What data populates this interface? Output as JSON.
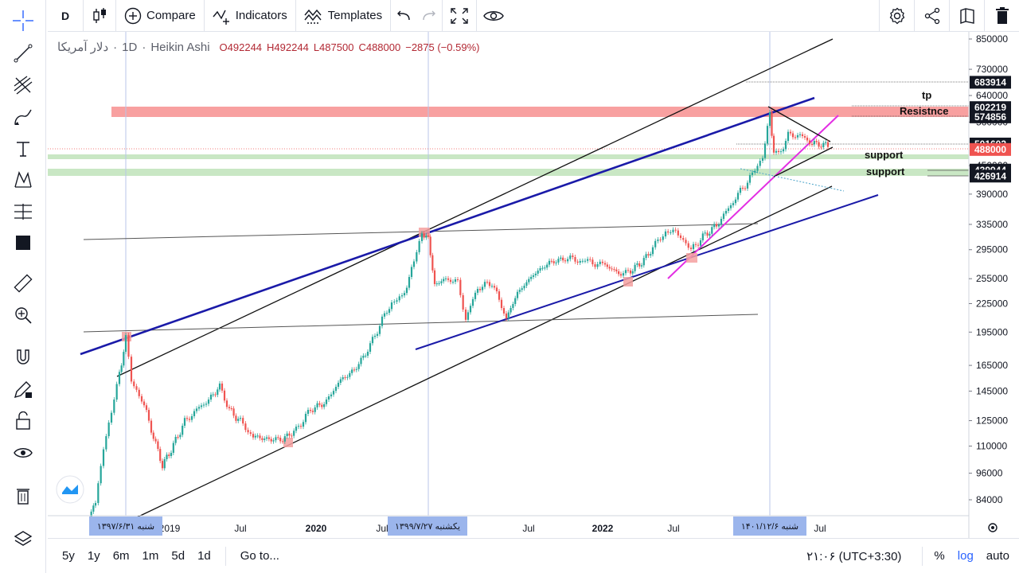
{
  "toolbar": {
    "interval": "D",
    "compare": "Compare",
    "indicators": "Indicators",
    "templates": "Templates"
  },
  "legend": {
    "symbol": "دلار آمریکا",
    "dot": "·",
    "interval": "1D",
    "style": "Heikin Ashi",
    "open": "O492244",
    "high": "H492244",
    "low": "L487500",
    "close": "C488000",
    "change": "−2875 (−0.59%)"
  },
  "bottom": {
    "ranges": [
      "5y",
      "1y",
      "6m",
      "1m",
      "5d",
      "1d"
    ],
    "goto": "Go to...",
    "time": "۲۱:۰۶ (UTC+3:30)",
    "percent": "%",
    "log": "log",
    "auto": "auto"
  },
  "colors": {
    "accent": "#2962ff",
    "resistance_zone": "#f8a0a0",
    "support_zone": "#c9e7c4",
    "trend_blue": "#1a1aa8",
    "trend_magenta": "#e32ee3",
    "up": "#26a69a",
    "down": "#ef5350"
  },
  "chart_data": {
    "type": "candlestick",
    "scale": "log",
    "y_ticks": [
      850000,
      730000,
      640000,
      560000,
      450000,
      390000,
      335000,
      295000,
      255000,
      225000,
      195000,
      165000,
      145000,
      125000,
      110000,
      96000,
      84000
    ],
    "x_ticks": [
      "2019",
      "Jul",
      "2020",
      "Jul",
      "Jul",
      "2022",
      "Jul",
      "Jul"
    ],
    "price_labels": [
      {
        "value": 683914,
        "text": "683914",
        "kind": "level"
      },
      {
        "value": 602219,
        "text": "602219",
        "kind": "level"
      },
      {
        "value": 574856,
        "text": "574856",
        "kind": "level"
      },
      {
        "value": 501602,
        "text": "501602",
        "kind": "level"
      },
      {
        "value": 488000,
        "text": "488000",
        "kind": "last"
      },
      {
        "value": 439944,
        "text": "439944",
        "kind": "level"
      },
      {
        "value": 426914,
        "text": "426914",
        "kind": "level"
      }
    ],
    "date_labels": [
      {
        "text": "شنبه ۱۳۹۷/۶/۳۱"
      },
      {
        "text": "یکشنبه ۱۳۹۹/۷/۲۷"
      },
      {
        "text": "شنبه ۱۴۰۱/۱۲/۶"
      }
    ],
    "annotations": [
      "tp",
      "Resistnce",
      "support",
      "support"
    ],
    "ohlc_last": {
      "open": 492244,
      "high": 492244,
      "low": 487500,
      "close": 488000,
      "change": -2875,
      "change_pct": -0.59
    }
  }
}
